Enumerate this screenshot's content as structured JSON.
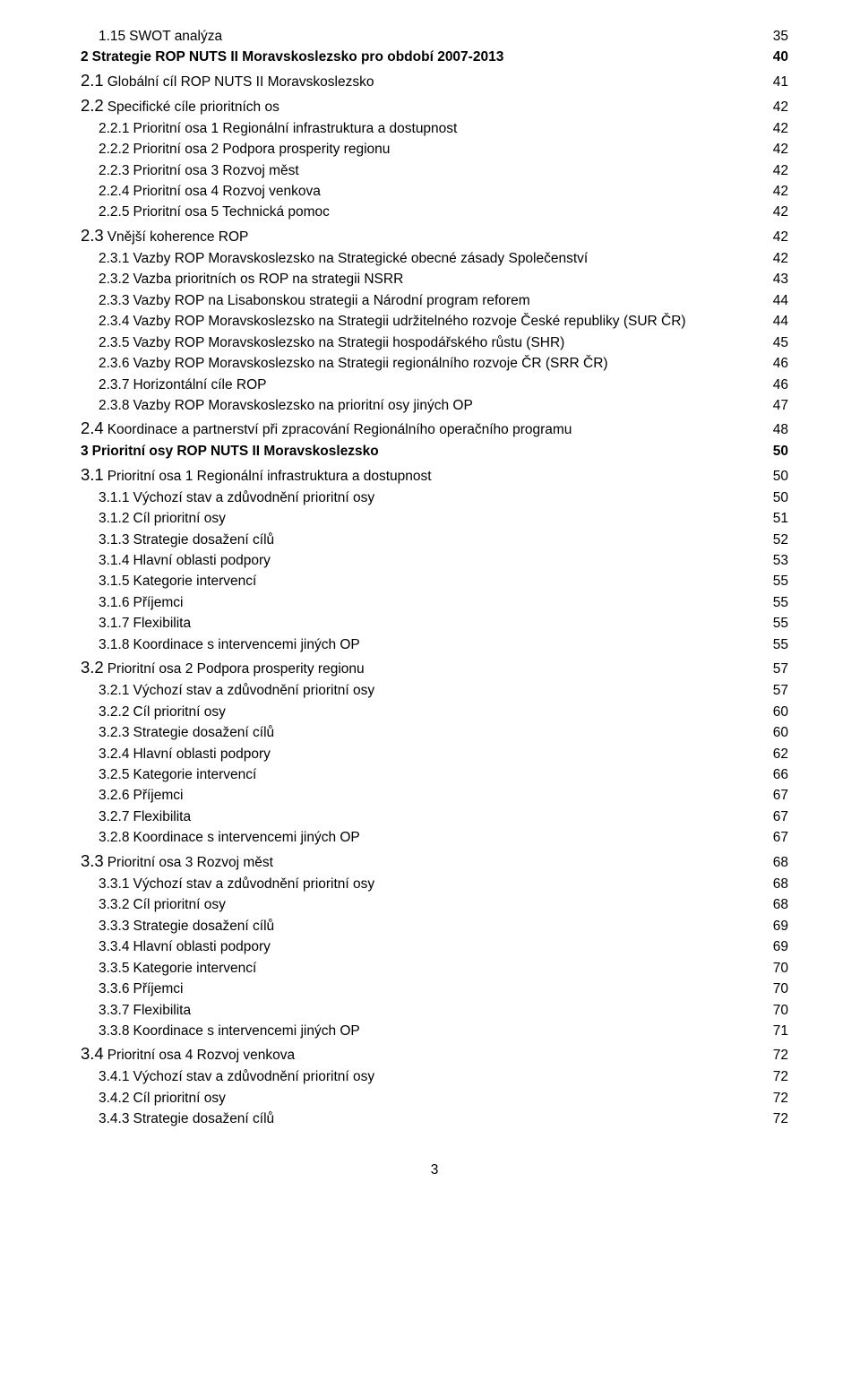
{
  "pageNumber": "3",
  "colors": {
    "text": "#000000",
    "background": "#ffffff"
  },
  "fontSizes": {
    "normal": 15.5,
    "big": 18.5
  },
  "toc": [
    {
      "num": "1.15",
      "label": "SWOT analýza",
      "page": "35",
      "level": 1,
      "style": "sub"
    },
    {
      "num": "2",
      "label": "Strategie ROP NUTS II Moravskoslezsko pro období 2007-2013",
      "page": "40",
      "level": 0,
      "style": "bold"
    },
    {
      "num": "2.1",
      "label": "Globální cíl ROP NUTS II Moravskoslezsko",
      "page": "41",
      "level": 0,
      "style": "big"
    },
    {
      "num": "2.2",
      "label": "Specifické cíle prioritních os",
      "page": "42",
      "level": 0,
      "style": "big"
    },
    {
      "num": "2.2.1",
      "label": "Prioritní osa 1 Regionální infrastruktura a dostupnost",
      "page": "42",
      "level": 1,
      "style": "sub"
    },
    {
      "num": "2.2.2",
      "label": "Prioritní osa 2 Podpora prosperity regionu",
      "page": "42",
      "level": 1,
      "style": "sub"
    },
    {
      "num": "2.2.3",
      "label": "Prioritní osa 3 Rozvoj měst",
      "page": "42",
      "level": 1,
      "style": "sub"
    },
    {
      "num": "2.2.4",
      "label": "Prioritní osa 4 Rozvoj venkova",
      "page": "42",
      "level": 1,
      "style": "sub"
    },
    {
      "num": "2.2.5",
      "label": "Prioritní osa 5 Technická pomoc",
      "page": "42",
      "level": 1,
      "style": "sub"
    },
    {
      "num": "2.3",
      "label": "Vnější koherence ROP",
      "page": "42",
      "level": 0,
      "style": "big"
    },
    {
      "num": "2.3.1",
      "label": "Vazby ROP Moravskoslezsko na Strategické obecné zásady Společenství",
      "page": "42",
      "level": 1,
      "style": "sub"
    },
    {
      "num": "2.3.2",
      "label": "Vazba prioritních os ROP na strategii NSRR",
      "page": "43",
      "level": 1,
      "style": "sub"
    },
    {
      "num": "2.3.3",
      "label": "Vazby ROP na Lisabonskou strategii a Národní program reforem",
      "page": "44",
      "level": 1,
      "style": "sub"
    },
    {
      "num": "2.3.4",
      "label": "Vazby ROP Moravskoslezsko na Strategii udržitelného rozvoje České republiky (SUR ČR)",
      "page": "44",
      "level": 1,
      "style": "sub"
    },
    {
      "num": "2.3.5",
      "label": "Vazby ROP Moravskoslezsko na Strategii hospodářského růstu (SHR)",
      "page": "45",
      "level": 1,
      "style": "sub"
    },
    {
      "num": "2.3.6",
      "label": "Vazby ROP Moravskoslezsko na Strategii regionálního rozvoje ČR (SRR ČR)",
      "page": "46",
      "level": 1,
      "style": "sub"
    },
    {
      "num": "2.3.7",
      "label": "Horizontální cíle ROP",
      "page": "46",
      "level": 1,
      "style": "sub"
    },
    {
      "num": "2.3.8",
      "label": "Vazby ROP Moravskoslezsko na prioritní osy jiných OP",
      "page": "47",
      "level": 1,
      "style": "sub"
    },
    {
      "num": "2.4",
      "label": "Koordinace a partnerství při zpracování Regionálního operačního programu",
      "page": "48",
      "level": 0,
      "style": "big"
    },
    {
      "num": "3",
      "label": "Prioritní osy ROP NUTS II Moravskoslezsko",
      "page": "50",
      "level": 0,
      "style": "bold"
    },
    {
      "num": "3.1",
      "label": "Prioritní osa 1 Regionální infrastruktura a dostupnost",
      "page": "50",
      "level": 0,
      "style": "big"
    },
    {
      "num": "3.1.1",
      "label": "Výchozí stav a zdůvodnění prioritní osy",
      "page": "50",
      "level": 1,
      "style": "sub"
    },
    {
      "num": "3.1.2",
      "label": "Cíl prioritní osy",
      "page": "51",
      "level": 1,
      "style": "sub"
    },
    {
      "num": "3.1.3",
      "label": "Strategie dosažení cílů",
      "page": "52",
      "level": 1,
      "style": "sub"
    },
    {
      "num": "3.1.4",
      "label": "Hlavní oblasti podpory",
      "page": "53",
      "level": 1,
      "style": "sub"
    },
    {
      "num": "3.1.5",
      "label": "Kategorie intervencí",
      "page": "55",
      "level": 1,
      "style": "sub"
    },
    {
      "num": "3.1.6",
      "label": "Příjemci",
      "page": "55",
      "level": 1,
      "style": "sub"
    },
    {
      "num": "3.1.7",
      "label": "Flexibilita",
      "page": "55",
      "level": 1,
      "style": "sub"
    },
    {
      "num": "3.1.8",
      "label": "Koordinace s intervencemi jiných OP",
      "page": "55",
      "level": 1,
      "style": "sub"
    },
    {
      "num": "3.2",
      "label": "Prioritní osa 2 Podpora prosperity regionu",
      "page": "57",
      "level": 0,
      "style": "big"
    },
    {
      "num": "3.2.1",
      "label": "Výchozí stav a zdůvodnění prioritní osy",
      "page": "57",
      "level": 1,
      "style": "sub"
    },
    {
      "num": "3.2.2",
      "label": "Cíl prioritní osy",
      "page": "60",
      "level": 1,
      "style": "sub"
    },
    {
      "num": "3.2.3",
      "label": "Strategie dosažení cílů",
      "page": "60",
      "level": 1,
      "style": "sub"
    },
    {
      "num": "3.2.4",
      "label": "Hlavní oblasti podpory",
      "page": "62",
      "level": 1,
      "style": "sub"
    },
    {
      "num": "3.2.5",
      "label": "Kategorie intervencí",
      "page": "66",
      "level": 1,
      "style": "sub"
    },
    {
      "num": "3.2.6",
      "label": "Příjemci",
      "page": "67",
      "level": 1,
      "style": "sub"
    },
    {
      "num": "3.2.7",
      "label": "Flexibilita",
      "page": "67",
      "level": 1,
      "style": "sub"
    },
    {
      "num": "3.2.8",
      "label": "Koordinace s intervencemi jiných OP",
      "page": "67",
      "level": 1,
      "style": "sub"
    },
    {
      "num": "3.3",
      "label": "Prioritní osa 3 Rozvoj měst",
      "page": "68",
      "level": 0,
      "style": "big"
    },
    {
      "num": "3.3.1",
      "label": "Výchozí stav a zdůvodnění prioritní osy",
      "page": "68",
      "level": 1,
      "style": "sub"
    },
    {
      "num": "3.3.2",
      "label": "Cíl prioritní osy",
      "page": "68",
      "level": 1,
      "style": "sub"
    },
    {
      "num": "3.3.3",
      "label": "Strategie dosažení cílů",
      "page": "69",
      "level": 1,
      "style": "sub"
    },
    {
      "num": "3.3.4",
      "label": "Hlavní oblasti podpory",
      "page": "69",
      "level": 1,
      "style": "sub"
    },
    {
      "num": "3.3.5",
      "label": "Kategorie intervencí",
      "page": "70",
      "level": 1,
      "style": "sub"
    },
    {
      "num": "3.3.6",
      "label": "Příjemci",
      "page": "70",
      "level": 1,
      "style": "sub"
    },
    {
      "num": "3.3.7",
      "label": "Flexibilita",
      "page": "70",
      "level": 1,
      "style": "sub"
    },
    {
      "num": "3.3.8",
      "label": "Koordinace s intervencemi jiných OP",
      "page": "71",
      "level": 1,
      "style": "sub"
    },
    {
      "num": "3.4",
      "label": "Prioritní osa 4 Rozvoj venkova",
      "page": "72",
      "level": 0,
      "style": "big"
    },
    {
      "num": "3.4.1",
      "label": "Výchozí stav a zdůvodnění prioritní osy",
      "page": "72",
      "level": 1,
      "style": "sub"
    },
    {
      "num": "3.4.2",
      "label": "Cíl prioritní osy",
      "page": "72",
      "level": 1,
      "style": "sub"
    },
    {
      "num": "3.4.3",
      "label": "Strategie dosažení cílů",
      "page": "72",
      "level": 1,
      "style": "sub"
    }
  ]
}
